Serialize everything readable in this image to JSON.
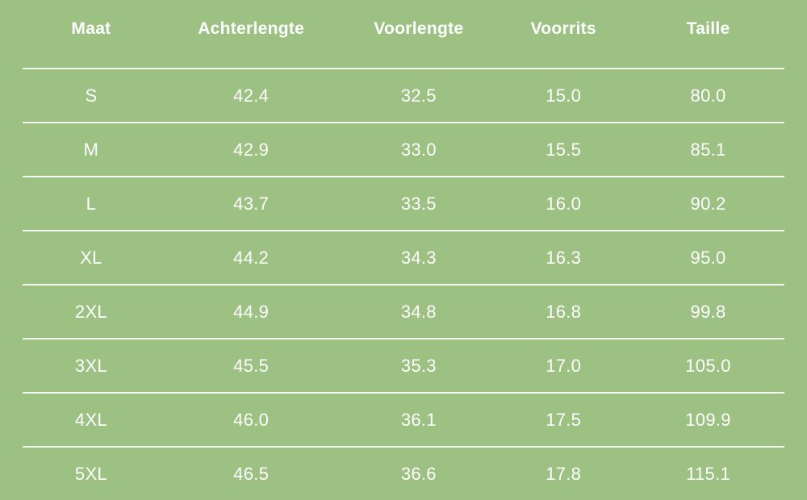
{
  "theme": {
    "background_color": "#9CC182",
    "text_color": "#FFFFFF",
    "divider_color": "#EDF1E4"
  },
  "table": {
    "columns": [
      "Maat",
      "Achterlengte",
      "Voorlengte",
      "Voorrits",
      "Taille"
    ],
    "rows": [
      [
        "S",
        "42.4",
        "32.5",
        "15.0",
        "80.0"
      ],
      [
        "M",
        "42.9",
        "33.0",
        "15.5",
        "85.1"
      ],
      [
        "L",
        "43.7",
        "33.5",
        "16.0",
        "90.2"
      ],
      [
        "XL",
        "44.2",
        "34.3",
        "16.3",
        "95.0"
      ],
      [
        "2XL",
        "44.9",
        "34.8",
        "16.8",
        "99.8"
      ],
      [
        "3XL",
        "45.5",
        "35.3",
        "17.0",
        "105.0"
      ],
      [
        "4XL",
        "46.0",
        "36.1",
        "17.5",
        "109.9"
      ],
      [
        "5XL",
        "46.5",
        "36.6",
        "17.8",
        "115.1"
      ]
    ]
  },
  "chart_data": {
    "type": "table",
    "title": "",
    "columns": [
      "Maat",
      "Achterlengte",
      "Voorlengte",
      "Voorrits",
      "Taille"
    ],
    "rows": [
      {
        "maat": "S",
        "achterlengte": 42.4,
        "voorlengte": 32.5,
        "voorrits": 15.0,
        "taille": 80.0
      },
      {
        "maat": "M",
        "achterlengte": 42.9,
        "voorlengte": 33.0,
        "voorrits": 15.5,
        "taille": 85.1
      },
      {
        "maat": "L",
        "achterlengte": 43.7,
        "voorlengte": 33.5,
        "voorrits": 16.0,
        "taille": 90.2
      },
      {
        "maat": "XL",
        "achterlengte": 44.2,
        "voorlengte": 34.3,
        "voorrits": 16.3,
        "taille": 95.0
      },
      {
        "maat": "2XL",
        "achterlengte": 44.9,
        "voorlengte": 34.8,
        "voorrits": 16.8,
        "taille": 99.8
      },
      {
        "maat": "3XL",
        "achterlengte": 45.5,
        "voorlengte": 35.3,
        "voorrits": 17.0,
        "taille": 105.0
      },
      {
        "maat": "4XL",
        "achterlengte": 46.0,
        "voorlengte": 36.1,
        "voorrits": 17.5,
        "taille": 109.9
      },
      {
        "maat": "5XL",
        "achterlengte": 46.5,
        "voorlengte": 36.6,
        "voorrits": 17.8,
        "taille": 115.1
      }
    ]
  }
}
